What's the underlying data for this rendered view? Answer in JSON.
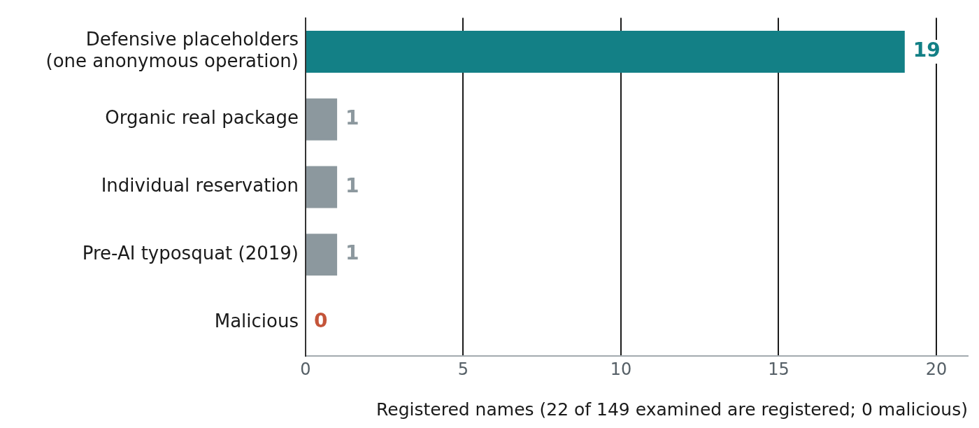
{
  "chart_data": {
    "type": "bar",
    "orientation": "horizontal",
    "categories": [
      "Defensive placeholders\n(one anonymous operation)",
      "Organic real package",
      "Individual reservation",
      "Pre-AI typosquat (2019)",
      "Malicious"
    ],
    "values": [
      19,
      1,
      1,
      1,
      0
    ],
    "colors": [
      "#138086",
      "#8c989e",
      "#8c989e",
      "#8c989e",
      "#c4553a"
    ],
    "xlabel": "Registered names (22 of 149 examined are registered; 0 malicious)",
    "xlim": [
      0,
      21
    ],
    "xticks": [
      0,
      5,
      10,
      15,
      20
    ],
    "grid": "x",
    "legend": false,
    "data_labels": true
  }
}
